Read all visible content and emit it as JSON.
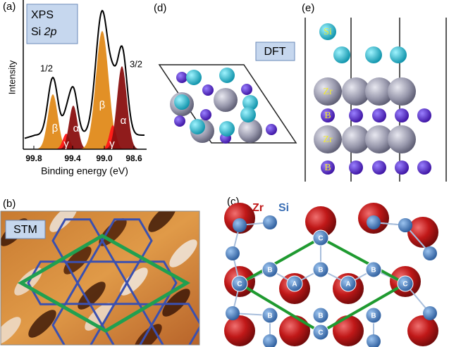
{
  "panel_labels": [
    "(a)",
    "(b)",
    "(c)",
    "(d)",
    "(e)"
  ],
  "xps": {
    "title_line1": "XPS",
    "title_line2_prefix": "Si ",
    "title_line2_italic": "2p",
    "y_label": "Intensity",
    "x_label": "Binding energy (eV)",
    "x_ticks": [
      "99.8",
      "99.4",
      "99.0",
      "98.6"
    ],
    "peak_labels": [
      "1/2",
      "3/2"
    ],
    "component_labels": [
      "β",
      "γ",
      "α",
      "β",
      "γ",
      "α"
    ]
  },
  "stm": {
    "label": "STM"
  },
  "lattice": {
    "legend": [
      "Zr",
      "Si"
    ],
    "site_labels": [
      "C",
      "B",
      "B",
      "B",
      "C",
      "A",
      "A",
      "C",
      "B",
      "B",
      "B",
      "C"
    ]
  },
  "dft": {
    "label": "DFT"
  },
  "side_view": {
    "atom_labels": [
      "Si",
      "Zr",
      "B",
      "Zr",
      "B"
    ]
  }
}
